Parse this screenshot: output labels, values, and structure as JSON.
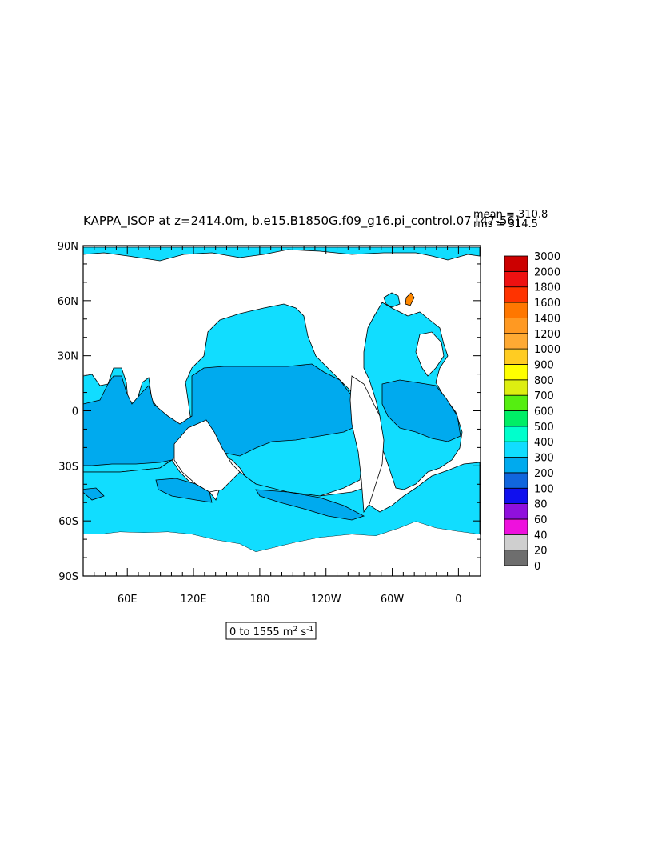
{
  "figure": {
    "title": "KAPPA_ISOP at z=2414.0m, b.e15.B1850G.f09_g16.pi_control.07 [47-56]",
    "stats": {
      "mean": "mean = 310.8",
      "rms": "rms = 314.5"
    },
    "range_label": "0 to 1555 m",
    "range_unit_sup": "2",
    "range_unit_s": " s",
    "range_unit_s_sup": "-1"
  },
  "chart_data": {
    "type": "heatmap",
    "title": "KAPPA_ISOP at z=2414.0m, b.e15.B1850G.f09_g16.pi_control.07 [47-56]",
    "field_range": [
      0,
      1555
    ],
    "units": "m2 s-1",
    "mean": 310.8,
    "rms": 314.5,
    "x_ticks": [
      "60E",
      "120E",
      "180",
      "120W",
      "60W",
      "0"
    ],
    "x_tick_lon": [
      60,
      120,
      180,
      240,
      300,
      360
    ],
    "xlim_lon": [
      20,
      380
    ],
    "y_ticks": [
      "90N",
      "60N",
      "30N",
      "0",
      "30S",
      "60S",
      "90S"
    ],
    "y_tick_lat": [
      90,
      60,
      30,
      0,
      -30,
      -60,
      -90
    ],
    "ylim_lat": [
      -90,
      90
    ],
    "colorbar": {
      "levels": [
        "0",
        "20",
        "40",
        "60",
        "80",
        "100",
        "200",
        "300",
        "400",
        "500",
        "600",
        "700",
        "800",
        "900",
        "1000",
        "1200",
        "1400",
        "1600",
        "1800",
        "2000",
        "3000"
      ],
      "colors": [
        "#6e6e6e",
        "#cfcfcf",
        "#ee11dd",
        "#9010dd",
        "#1010ee",
        "#1166dd",
        "#00aaee",
        "#11ddff",
        "#00ffcc",
        "#00ee66",
        "#55ee11",
        "#ddee11",
        "#ffff00",
        "#ffcc22",
        "#ffaa33",
        "#ff9922",
        "#ff7700",
        "#ff3300",
        "#ee1111",
        "#cc0000"
      ]
    },
    "colors": {
      "ocean_200_300": "#00aaee",
      "ocean_300_400": "#11ddff",
      "land": "#ffffff"
    }
  }
}
